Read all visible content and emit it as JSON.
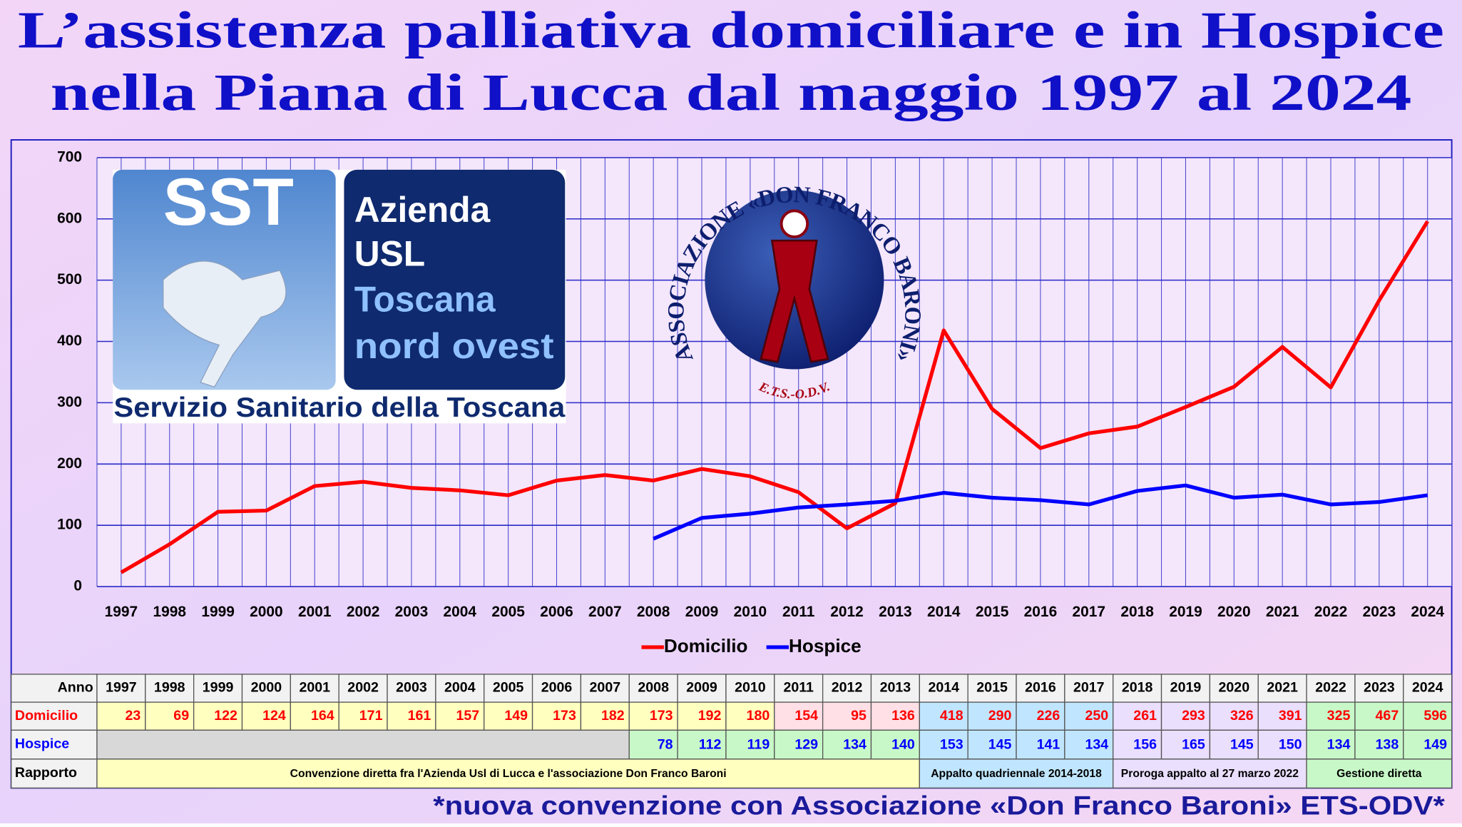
{
  "title": [
    "L’assistenza palliativa domiciliare e in Hospice",
    "nella Piana di Lucca dal maggio 1997 al 2024"
  ],
  "logo_asl": {
    "brand": "SST",
    "lines": [
      "Azienda",
      "USL",
      "Toscana",
      "nord ovest"
    ],
    "caption": "Servizio Sanitario della Toscana"
  },
  "logo_association": {
    "ring": "ASSOCIAZIONE «DON FRANCO BARONI»",
    "sub": "E.T.S.-O.D.V."
  },
  "chart_data": {
    "type": "line",
    "categories": [
      "1997",
      "1998",
      "1999",
      "2000",
      "2001",
      "2002",
      "2003",
      "2004",
      "2005",
      "2006",
      "2007",
      "2008",
      "2009",
      "2010",
      "2011",
      "2012",
      "2013",
      "2014",
      "2015",
      "2016",
      "2017",
      "2018",
      "2019",
      "2020",
      "2021",
      "2022",
      "2023",
      "2024"
    ],
    "series": [
      {
        "name": "Domicilio",
        "color": "#ff0000",
        "values": [
          23,
          69,
          122,
          124,
          164,
          171,
          161,
          157,
          149,
          173,
          182,
          173,
          192,
          180,
          154,
          95,
          136,
          418,
          290,
          226,
          250,
          261,
          293,
          326,
          391,
          325,
          467,
          596
        ]
      },
      {
        "name": "Hospice",
        "color": "#0000ff",
        "values": [
          null,
          null,
          null,
          null,
          null,
          null,
          null,
          null,
          null,
          null,
          null,
          78,
          112,
          119,
          129,
          134,
          140,
          153,
          145,
          141,
          134,
          156,
          165,
          145,
          150,
          134,
          138,
          149
        ]
      }
    ],
    "ylim": [
      0,
      700
    ],
    "yticks": [
      0,
      100,
      200,
      300,
      400,
      500,
      600,
      700
    ],
    "grid": true,
    "legend": "bottom"
  },
  "table": {
    "header": "Anno",
    "rapporto_label": "Rapporto",
    "rapporto": [
      "Convenzione diretta fra l'Azienda Usl di Lucca e l'associazione Don Franco Baroni",
      "Appalto quadriennale 2014-2018",
      "Proroga appalto al 27 marzo 2022",
      "Gestione diretta"
    ]
  },
  "footer": "*nuova convenzione con Associazione «Don Franco Baroni» ETS-ODV*"
}
